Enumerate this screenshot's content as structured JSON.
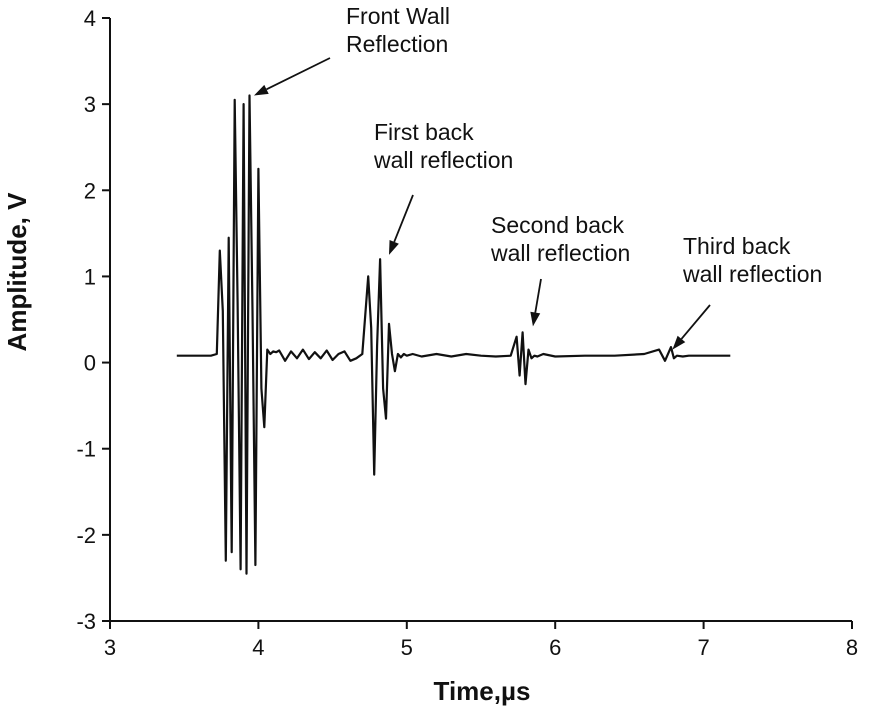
{
  "chart_data": {
    "type": "line",
    "title": "",
    "xlabel": "Time,µs",
    "ylabel": "Amplitude, V",
    "xlim": [
      3,
      8
    ],
    "ylim": [
      -3,
      4
    ],
    "xticks": [
      "3",
      "4",
      "5",
      "6",
      "7",
      "8"
    ],
    "yticks": [
      "-3",
      "-2",
      "-1",
      "0",
      "1",
      "2",
      "3",
      "4"
    ],
    "grid": false,
    "legend": "none",
    "series": [
      {
        "color": "#111111",
        "x": [
          3.45,
          3.6,
          3.68,
          3.72,
          3.74,
          3.76,
          3.78,
          3.8,
          3.82,
          3.84,
          3.86,
          3.88,
          3.9,
          3.92,
          3.94,
          3.96,
          3.98,
          4.0,
          4.02,
          4.04,
          4.06,
          4.08,
          4.1,
          4.12,
          4.14,
          4.18,
          4.22,
          4.26,
          4.3,
          4.34,
          4.38,
          4.42,
          4.46,
          4.5,
          4.54,
          4.58,
          4.62,
          4.66,
          4.7,
          4.74,
          4.76,
          4.78,
          4.8,
          4.82,
          4.84,
          4.86,
          4.88,
          4.9,
          4.92,
          4.94,
          4.96,
          4.98,
          5.0,
          5.04,
          5.1,
          5.2,
          5.3,
          5.4,
          5.5,
          5.6,
          5.7,
          5.74,
          5.76,
          5.78,
          5.8,
          5.82,
          5.84,
          5.86,
          5.88,
          5.92,
          6.0,
          6.2,
          6.4,
          6.6,
          6.7,
          6.74,
          6.78,
          6.8,
          6.82,
          6.86,
          6.9,
          7.0,
          7.18
        ],
        "y": [
          0.08,
          0.08,
          0.08,
          0.1,
          1.3,
          0.6,
          -2.3,
          1.45,
          -2.2,
          3.05,
          0.7,
          -2.4,
          3.0,
          -2.45,
          3.1,
          0.6,
          -2.35,
          2.25,
          -0.3,
          -0.75,
          0.15,
          0.1,
          0.13,
          0.12,
          0.14,
          0.02,
          0.13,
          0.05,
          0.15,
          0.04,
          0.12,
          0.05,
          0.14,
          0.03,
          0.1,
          0.13,
          0.02,
          0.05,
          0.1,
          1.0,
          0.4,
          -1.3,
          0.2,
          1.2,
          -0.3,
          -0.65,
          0.45,
          0.1,
          -0.1,
          0.1,
          0.06,
          0.1,
          0.08,
          0.1,
          0.07,
          0.1,
          0.07,
          0.1,
          0.08,
          0.07,
          0.08,
          0.3,
          -0.15,
          0.35,
          -0.25,
          0.15,
          0.05,
          0.08,
          0.07,
          0.1,
          0.07,
          0.08,
          0.08,
          0.1,
          0.15,
          0.02,
          0.18,
          0.05,
          0.08,
          0.07,
          0.08,
          0.08,
          0.08
        ]
      }
    ],
    "annotations": [
      {
        "lines": [
          "Front Wall",
          "Reflection"
        ],
        "target_x": 3.97,
        "target_y": 3.1
      },
      {
        "lines": [
          "First back",
          "wall reflection"
        ],
        "target_x": 4.88,
        "target_y": 1.25
      },
      {
        "lines": [
          "Second back",
          "wall reflection"
        ],
        "target_x": 5.85,
        "target_y": 0.42
      },
      {
        "lines": [
          "Third back",
          "wall reflection"
        ],
        "target_x": 6.79,
        "target_y": 0.15
      }
    ]
  }
}
